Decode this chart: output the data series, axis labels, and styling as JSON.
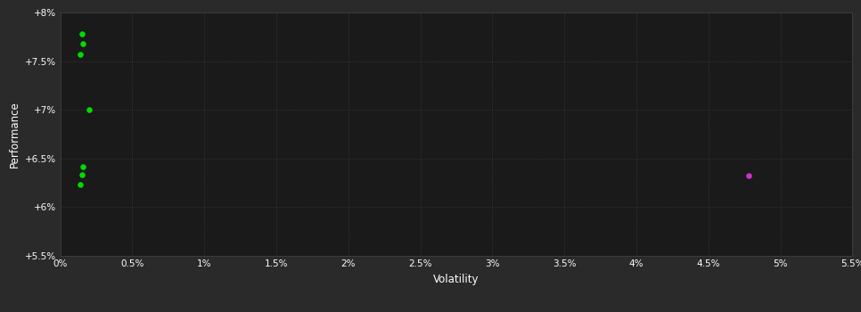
{
  "background_color": "#2a2a2a",
  "plot_bg_color": "#1a1a1a",
  "grid_color": "#444444",
  "text_color": "#ffffff",
  "xlabel": "Volatility",
  "ylabel": "Performance",
  "xlim": [
    0.0,
    0.055
  ],
  "ylim": [
    0.055,
    0.08
  ],
  "x_ticks": [
    0.0,
    0.005,
    0.01,
    0.015,
    0.02,
    0.025,
    0.03,
    0.035,
    0.04,
    0.045,
    0.05,
    0.055
  ],
  "x_tick_labels": [
    "0%",
    "0.5%",
    "1%",
    "1.5%",
    "2%",
    "2.5%",
    "3%",
    "3.5%",
    "4%",
    "4.5%",
    "5%",
    "5.5%"
  ],
  "y_ticks": [
    0.055,
    0.06,
    0.065,
    0.07,
    0.075,
    0.08
  ],
  "y_tick_labels": [
    "+5.5%",
    "+6%",
    "+6.5%",
    "+7%",
    "+7.5%",
    "+8%"
  ],
  "green_points": [
    [
      0.0015,
      0.0778
    ],
    [
      0.0016,
      0.0768
    ],
    [
      0.0014,
      0.0757
    ],
    [
      0.002,
      0.07
    ],
    [
      0.0016,
      0.0642
    ],
    [
      0.0015,
      0.0633
    ],
    [
      0.0014,
      0.0623
    ]
  ],
  "magenta_points": [
    [
      0.0478,
      0.0632
    ]
  ],
  "green_color": "#00dd00",
  "magenta_color": "#cc33cc",
  "marker_size": 22
}
